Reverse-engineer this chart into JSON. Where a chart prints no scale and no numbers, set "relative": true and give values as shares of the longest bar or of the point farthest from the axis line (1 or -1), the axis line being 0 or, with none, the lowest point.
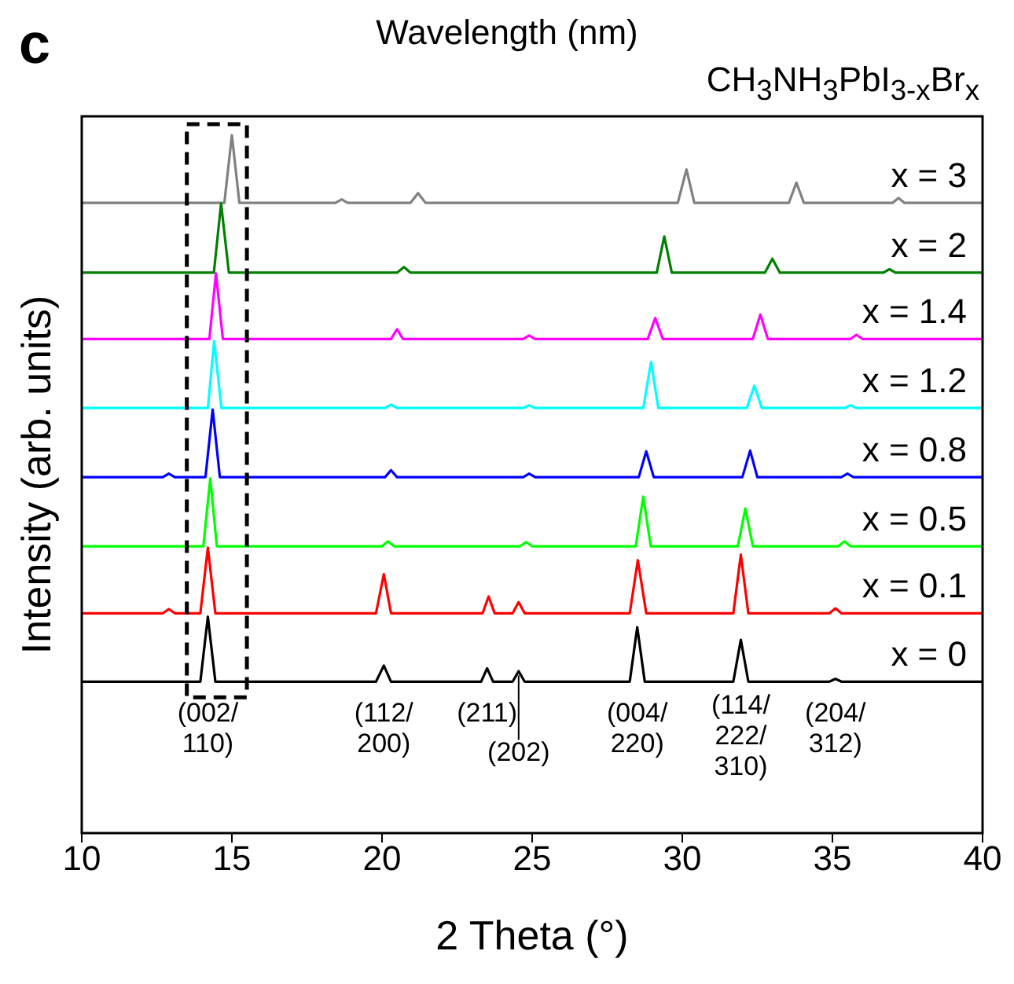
{
  "chart_data": {
    "type": "line",
    "relative": true,
    "title": "CH$_{3}$NH$_{3}$PbI$_{3-x}$Br$_{x}$",
    "xlabel": "2 Theta (°)",
    "ylabel": "Intensity (arb. units)",
    "xlim": [
      10,
      40
    ],
    "xticks": [
      10,
      15,
      20,
      25,
      30,
      35,
      40
    ],
    "legend": false,
    "marker": "none",
    "line_style": "solid",
    "grid": false,
    "series": [
      {
        "name": "x = 3",
        "color": "#808080",
        "x": [
          10,
          14.75,
          15.0,
          15.25,
          18.45,
          18.66,
          18.85,
          20.95,
          21.2,
          21.45,
          29.85,
          30.14,
          30.4,
          33.55,
          33.8,
          34.05,
          37.0,
          37.2,
          37.4,
          40
        ],
        "values": [
          0.903,
          0.903,
          1,
          0.903,
          0.903,
          0.908,
          0.903,
          0.903,
          0.917,
          0.903,
          0.903,
          0.951,
          0.903,
          0.903,
          0.932,
          0.903,
          0.903,
          0.91,
          0.903,
          0.903
        ]
      },
      {
        "name": "x = 2",
        "color": "#008000",
        "x": [
          10,
          14.4,
          14.64,
          14.9,
          20.5,
          20.73,
          20.95,
          29.15,
          29.4,
          29.65,
          32.75,
          33.0,
          33.25,
          36.7,
          36.9,
          37.1,
          40
        ],
        "values": [
          0.803,
          0.803,
          0.902,
          0.803,
          0.803,
          0.811,
          0.803,
          0.803,
          0.855,
          0.803,
          0.803,
          0.823,
          0.803,
          0.803,
          0.808,
          0.803,
          0.803
        ]
      },
      {
        "name": "x = 1.4",
        "color": "#ff00ff",
        "x": [
          10,
          14.25,
          14.47,
          14.7,
          20.3,
          20.5,
          20.7,
          24.7,
          24.9,
          25.1,
          28.85,
          29.1,
          29.35,
          32.35,
          32.6,
          32.85,
          35.6,
          35.8,
          36.0,
          40
        ],
        "values": [
          0.708,
          0.708,
          0.802,
          0.708,
          0.708,
          0.722,
          0.708,
          0.708,
          0.713,
          0.708,
          0.708,
          0.738,
          0.708,
          0.708,
          0.743,
          0.708,
          0.708,
          0.714,
          0.708,
          0.708
        ]
      },
      {
        "name": "x = 1.2",
        "color": "#00ffff",
        "x": [
          10,
          14.2,
          14.41,
          14.65,
          20.1,
          20.3,
          20.5,
          24.7,
          24.9,
          25.1,
          28.7,
          28.96,
          29.2,
          32.15,
          32.4,
          32.65,
          35.4,
          35.6,
          35.8,
          40
        ],
        "values": [
          0.609,
          0.609,
          0.705,
          0.609,
          0.609,
          0.614,
          0.609,
          0.609,
          0.613,
          0.609,
          0.609,
          0.675,
          0.609,
          0.609,
          0.641,
          0.609,
          0.609,
          0.613,
          0.609,
          0.609
        ]
      },
      {
        "name": "x = 0.8",
        "color": "#0000ff",
        "x": [
          10,
          12.7,
          12.9,
          13.1,
          14.12,
          14.36,
          14.6,
          20.1,
          20.3,
          20.5,
          24.7,
          24.9,
          25.1,
          28.55,
          28.8,
          29.05,
          32.0,
          32.26,
          32.5,
          35.3,
          35.5,
          35.7,
          40
        ],
        "values": [
          0.51,
          0.51,
          0.515,
          0.51,
          0.51,
          0.607,
          0.51,
          0.51,
          0.52,
          0.51,
          0.51,
          0.515,
          0.51,
          0.51,
          0.547,
          0.51,
          0.51,
          0.548,
          0.51,
          0.51,
          0.515,
          0.51,
          0.51
        ]
      },
      {
        "name": "x = 0.5",
        "color": "#00ff00",
        "x": [
          10,
          14.05,
          14.28,
          14.5,
          20.0,
          20.2,
          20.4,
          24.6,
          24.8,
          25.0,
          28.45,
          28.7,
          28.95,
          31.85,
          32.1,
          32.35,
          35.2,
          35.4,
          35.6,
          40
        ],
        "values": [
          0.411,
          0.411,
          0.508,
          0.411,
          0.411,
          0.418,
          0.411,
          0.411,
          0.417,
          0.411,
          0.411,
          0.482,
          0.411,
          0.411,
          0.465,
          0.411,
          0.411,
          0.418,
          0.411,
          0.411
        ]
      },
      {
        "name": "x = 0.1",
        "color": "#ff0000",
        "x": [
          10,
          12.7,
          12.9,
          13.1,
          13.95,
          14.2,
          14.45,
          19.8,
          20.06,
          20.3,
          23.35,
          23.55,
          23.75,
          24.35,
          24.55,
          24.75,
          28.25,
          28.52,
          28.8,
          31.7,
          31.95,
          32.2,
          34.9,
          35.1,
          35.3,
          40
        ],
        "values": [
          0.315,
          0.315,
          0.321,
          0.315,
          0.315,
          0.409,
          0.315,
          0.315,
          0.371,
          0.315,
          0.315,
          0.339,
          0.315,
          0.315,
          0.331,
          0.315,
          0.315,
          0.391,
          0.315,
          0.315,
          0.399,
          0.315,
          0.315,
          0.322,
          0.315,
          0.315
        ]
      },
      {
        "name": "x = 0",
        "color": "#000000",
        "x": [
          10,
          13.95,
          14.2,
          14.45,
          19.8,
          20.06,
          20.3,
          23.3,
          23.5,
          23.7,
          24.35,
          24.55,
          24.75,
          28.25,
          28.5,
          28.75,
          31.7,
          31.95,
          32.2,
          34.9,
          35.1,
          35.3,
          40
        ],
        "values": [
          0.217,
          0.217,
          0.31,
          0.217,
          0.217,
          0.24,
          0.217,
          0.217,
          0.236,
          0.217,
          0.217,
          0.232,
          0.217,
          0.217,
          0.295,
          0.217,
          0.217,
          0.277,
          0.217,
          0.217,
          0.221,
          0.217,
          0.217
        ]
      }
    ],
    "annotations": [
      "c",
      "Wavelength (nm)",
      "(002/\n110)",
      "(112/\n200)",
      "(211)",
      "(202)",
      "(004/\n220)",
      "(114/\n222/\n310)",
      "(204/\n312)"
    ]
  }
}
